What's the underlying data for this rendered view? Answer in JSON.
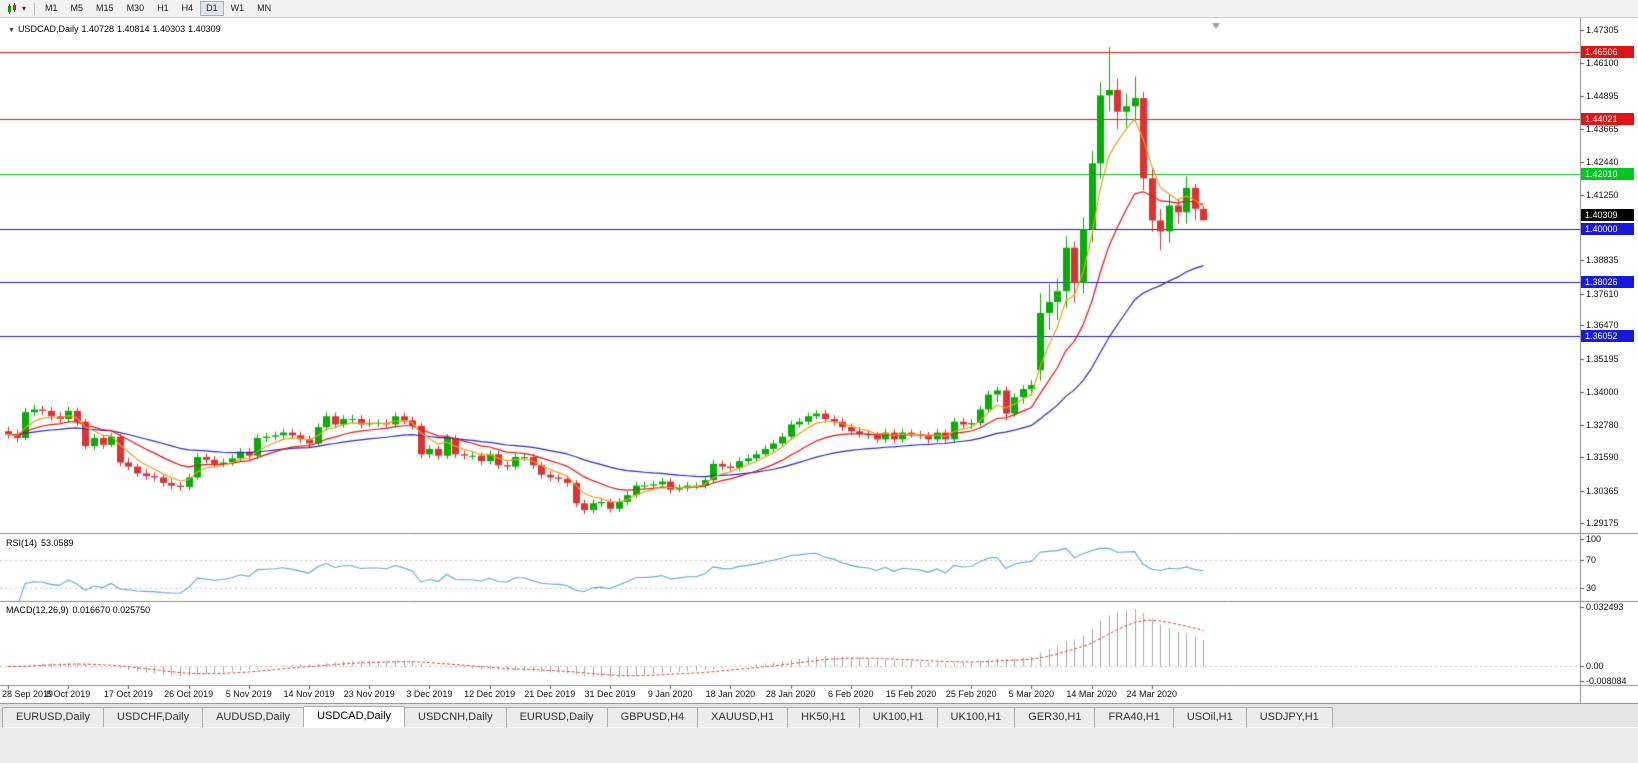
{
  "toolbar": {
    "timeframes": [
      "M1",
      "M5",
      "M15",
      "M30",
      "H1",
      "H4",
      "D1",
      "W1",
      "MN"
    ],
    "active_timeframe": "D1"
  },
  "chart": {
    "title": "USDCAD,Daily",
    "readout": {
      "open": "1.40728",
      "high": "1.40814",
      "low": "1.40303",
      "close": "1.40309"
    },
    "current_price_label": "1.40309",
    "y_axis_ticks": [
      "1.47305",
      "1.46100",
      "1.44895",
      "1.43665",
      "1.42440",
      "1.41250",
      "1.38835",
      "1.37610",
      "1.36470",
      "1.35195",
      "1.34000",
      "1.32780",
      "1.31590",
      "1.30365",
      "1.29175"
    ],
    "hlines": [
      {
        "label": "1.46506",
        "price": 1.46506,
        "color": "#e01414"
      },
      {
        "label": "1.44021",
        "price": 1.44021,
        "color": "#e01414"
      },
      {
        "label": "1.42010",
        "price": 1.4201,
        "color": "#00c81e"
      },
      {
        "label": "1.40000",
        "price": 1.4,
        "color": "#1818e0"
      },
      {
        "label": "1.38026",
        "price": 1.38026,
        "color": "#1818e0"
      },
      {
        "label": "1.36052",
        "price": 1.36052,
        "color": "#1818e0"
      }
    ]
  },
  "rsi": {
    "label": "RSI(14)",
    "value": "53.0589",
    "axis_labels": [
      "100",
      "70",
      "30"
    ],
    "levels": [
      70,
      30
    ]
  },
  "macd": {
    "label": "MACD(12,26,9)",
    "values": "0.016670 0.025750",
    "axis_labels": [
      "0.032493",
      "0.00",
      "-0.008084"
    ]
  },
  "time_axis": [
    "28 Sep 2019",
    "8 Oct 2019",
    "17 Oct 2019",
    "26 Oct 2019",
    "5 Nov 2019",
    "14 Nov 2019",
    "23 Nov 2019",
    "3 Dec 2019",
    "12 Dec 2019",
    "21 Dec 2019",
    "31 Dec 2019",
    "9 Jan 2020",
    "18 Jan 2020",
    "28 Jan 2020",
    "6 Feb 2020",
    "15 Feb 2020",
    "25 Feb 2020",
    "5 Mar 2020",
    "14 Mar 2020",
    "24 Mar 2020"
  ],
  "tabs": {
    "active_index": 3,
    "items": [
      "EURUSD,Daily",
      "USDCHF,Daily",
      "AUDUSD,Daily",
      "USDCAD,Daily",
      "USDCNH,Daily",
      "EURUSD,Daily",
      "GBPUSD,H4",
      "XAUUSD,H1",
      "HK50,H1",
      "UK100,H1",
      "UK100,H1",
      "GER30,H1",
      "FRA40,H1",
      "USOil,H1",
      "USDJPY,H1"
    ]
  },
  "colors": {
    "bull": "#00b000",
    "bear": "#e03030",
    "ma_fast": "#e8a018",
    "ma_mid": "#f01010",
    "ma_slow": "#2828cc",
    "rsi": "#58aadc",
    "macd_hist": "#a8a8a8",
    "macd_signal": "#e04040",
    "axis_line": "#8c8c8c",
    "current_badge": "#000000"
  },
  "chart_data": {
    "type": "candlestick",
    "symbol": "USDCAD",
    "timeframe": "Daily",
    "title": "USDCAD,Daily",
    "y_range": [
      1.29175,
      1.47305
    ],
    "bars_per_x_label": 7,
    "x_tick_labels": [
      "28 Sep 2019",
      "8 Oct 2019",
      "17 Oct 2019",
      "26 Oct 2019",
      "5 Nov 2019",
      "14 Nov 2019",
      "23 Nov 2019",
      "3 Dec 2019",
      "12 Dec 2019",
      "21 Dec 2019",
      "31 Dec 2019",
      "9 Jan 2020",
      "18 Jan 2020",
      "28 Jan 2020",
      "6 Feb 2020",
      "15 Feb 2020",
      "25 Feb 2020",
      "5 Mar 2020",
      "14 Mar 2020",
      "24 Mar 2020"
    ],
    "overlays": {
      "ma_type": "ema",
      "ma_fast_period": 5,
      "ma_mid_period": 13,
      "ma_slow_period": 34
    },
    "indicators": {
      "rsi_period": 14,
      "rsi_current": 53.0589,
      "rsi_levels": [
        70,
        30
      ],
      "macd_params": [
        12,
        26,
        9
      ],
      "macd_current": 0.01667,
      "macd_signal_current": 0.02575,
      "macd_axis_max": 0.032493,
      "macd_axis_min": -0.008084
    },
    "horizontal_levels": [
      1.46506,
      1.44021,
      1.4201,
      1.4,
      1.38026,
      1.36052
    ],
    "ohlc": [
      [
        1.3255,
        1.3272,
        1.3228,
        1.3243
      ],
      [
        1.3243,
        1.3262,
        1.3214,
        1.323
      ],
      [
        1.323,
        1.3341,
        1.3222,
        1.3325
      ],
      [
        1.3325,
        1.3352,
        1.331,
        1.3335
      ],
      [
        1.3335,
        1.3349,
        1.3315,
        1.333
      ],
      [
        1.333,
        1.3344,
        1.3295,
        1.331
      ],
      [
        1.331,
        1.3326,
        1.3286,
        1.33
      ],
      [
        1.33,
        1.3345,
        1.3288,
        1.333
      ],
      [
        1.333,
        1.3342,
        1.3275,
        1.329
      ],
      [
        1.329,
        1.33,
        1.3188,
        1.32
      ],
      [
        1.32,
        1.3245,
        1.3186,
        1.323
      ],
      [
        1.323,
        1.324,
        1.319,
        1.3205
      ],
      [
        1.3205,
        1.3249,
        1.3196,
        1.3235
      ],
      [
        1.3235,
        1.3244,
        1.3126,
        1.314
      ],
      [
        1.314,
        1.3158,
        1.3111,
        1.3125
      ],
      [
        1.3125,
        1.3136,
        1.3086,
        1.31
      ],
      [
        1.31,
        1.3116,
        1.3076,
        1.309
      ],
      [
        1.309,
        1.3104,
        1.3071,
        1.3085
      ],
      [
        1.3085,
        1.3096,
        1.3051,
        1.3065
      ],
      [
        1.3065,
        1.308,
        1.3041,
        1.3055
      ],
      [
        1.3055,
        1.3068,
        1.3036,
        1.305
      ],
      [
        1.305,
        1.3099,
        1.3038,
        1.3085
      ],
      [
        1.3085,
        1.3174,
        1.3077,
        1.316
      ],
      [
        1.316,
        1.3174,
        1.3136,
        1.315
      ],
      [
        1.315,
        1.3163,
        1.3121,
        1.3135
      ],
      [
        1.3135,
        1.3154,
        1.3122,
        1.314
      ],
      [
        1.314,
        1.3169,
        1.3128,
        1.3155
      ],
      [
        1.3155,
        1.3194,
        1.3143,
        1.318
      ],
      [
        1.318,
        1.3194,
        1.3151,
        1.3165
      ],
      [
        1.3165,
        1.3244,
        1.3153,
        1.323
      ],
      [
        1.323,
        1.3249,
        1.3216,
        1.3235
      ],
      [
        1.3235,
        1.3254,
        1.3221,
        1.324
      ],
      [
        1.324,
        1.3264,
        1.3226,
        1.325
      ],
      [
        1.325,
        1.3264,
        1.3226,
        1.324
      ],
      [
        1.324,
        1.3254,
        1.3211,
        1.3225
      ],
      [
        1.3225,
        1.3239,
        1.3196,
        1.321
      ],
      [
        1.321,
        1.3284,
        1.3198,
        1.327
      ],
      [
        1.327,
        1.3324,
        1.3258,
        1.331
      ],
      [
        1.331,
        1.3324,
        1.3266,
        1.328
      ],
      [
        1.328,
        1.3314,
        1.3268,
        1.33
      ],
      [
        1.33,
        1.3316,
        1.3284,
        1.33
      ],
      [
        1.33,
        1.3314,
        1.3266,
        1.328
      ],
      [
        1.328,
        1.3299,
        1.3271,
        1.3285
      ],
      [
        1.3285,
        1.3299,
        1.3271,
        1.3285
      ],
      [
        1.3285,
        1.3299,
        1.3266,
        1.328
      ],
      [
        1.328,
        1.3324,
        1.3268,
        1.331
      ],
      [
        1.331,
        1.3324,
        1.3281,
        1.3295
      ],
      [
        1.3295,
        1.3309,
        1.3261,
        1.3275
      ],
      [
        1.3275,
        1.3286,
        1.3156,
        1.317
      ],
      [
        1.317,
        1.3204,
        1.3158,
        1.319
      ],
      [
        1.319,
        1.3202,
        1.3151,
        1.3165
      ],
      [
        1.3165,
        1.3244,
        1.3153,
        1.323
      ],
      [
        1.323,
        1.3242,
        1.3156,
        1.317
      ],
      [
        1.317,
        1.3184,
        1.3151,
        1.3165
      ],
      [
        1.3165,
        1.3179,
        1.3151,
        1.3165
      ],
      [
        1.3165,
        1.3177,
        1.3131,
        1.3145
      ],
      [
        1.3145,
        1.3184,
        1.3133,
        1.317
      ],
      [
        1.317,
        1.3182,
        1.3116,
        1.313
      ],
      [
        1.313,
        1.3144,
        1.3111,
        1.3125
      ],
      [
        1.3125,
        1.3174,
        1.3113,
        1.316
      ],
      [
        1.316,
        1.3174,
        1.3146,
        1.316
      ],
      [
        1.316,
        1.3172,
        1.3116,
        1.313
      ],
      [
        1.313,
        1.3142,
        1.3081,
        1.3095
      ],
      [
        1.3095,
        1.3109,
        1.3071,
        1.3085
      ],
      [
        1.3085,
        1.3097,
        1.3066,
        1.308
      ],
      [
        1.308,
        1.3092,
        1.3051,
        1.3065
      ],
      [
        1.3065,
        1.3076,
        1.2976,
        1.299
      ],
      [
        1.299,
        1.3004,
        1.2951,
        1.2965
      ],
      [
        1.2965,
        1.3004,
        1.2953,
        1.299
      ],
      [
        1.299,
        1.3009,
        1.2976,
        1.2995
      ],
      [
        1.2995,
        1.3007,
        1.2956,
        1.297
      ],
      [
        1.297,
        1.3009,
        1.2958,
        1.2995
      ],
      [
        1.2995,
        1.3034,
        1.2983,
        1.302
      ],
      [
        1.302,
        1.3069,
        1.3008,
        1.3055
      ],
      [
        1.3055,
        1.3069,
        1.3041,
        1.3055
      ],
      [
        1.3055,
        1.3074,
        1.3046,
        1.306
      ],
      [
        1.306,
        1.3084,
        1.3048,
        1.307
      ],
      [
        1.307,
        1.3082,
        1.3026,
        1.304
      ],
      [
        1.304,
        1.3059,
        1.3031,
        1.3045
      ],
      [
        1.3045,
        1.3069,
        1.3033,
        1.3055
      ],
      [
        1.3055,
        1.3067,
        1.3041,
        1.3055
      ],
      [
        1.3055,
        1.3089,
        1.3043,
        1.3075
      ],
      [
        1.3075,
        1.3149,
        1.3063,
        1.3135
      ],
      [
        1.3135,
        1.3147,
        1.3111,
        1.3125
      ],
      [
        1.3125,
        1.3139,
        1.3106,
        1.312
      ],
      [
        1.312,
        1.3159,
        1.3108,
        1.3145
      ],
      [
        1.3145,
        1.3169,
        1.3131,
        1.3155
      ],
      [
        1.3155,
        1.3184,
        1.3143,
        1.317
      ],
      [
        1.317,
        1.3204,
        1.3158,
        1.319
      ],
      [
        1.319,
        1.3224,
        1.3178,
        1.321
      ],
      [
        1.321,
        1.3249,
        1.3198,
        1.3235
      ],
      [
        1.3235,
        1.3294,
        1.3223,
        1.328
      ],
      [
        1.328,
        1.3304,
        1.3268,
        1.329
      ],
      [
        1.329,
        1.3324,
        1.3278,
        1.331
      ],
      [
        1.331,
        1.3334,
        1.3298,
        1.332
      ],
      [
        1.332,
        1.3334,
        1.3286,
        1.33
      ],
      [
        1.33,
        1.3314,
        1.3276,
        1.329
      ],
      [
        1.329,
        1.3304,
        1.3256,
        1.327
      ],
      [
        1.327,
        1.3284,
        1.3241,
        1.3255
      ],
      [
        1.3255,
        1.3269,
        1.3231,
        1.3245
      ],
      [
        1.3245,
        1.3259,
        1.3226,
        1.324
      ],
      [
        1.324,
        1.3254,
        1.3211,
        1.3225
      ],
      [
        1.3225,
        1.3264,
        1.3213,
        1.325
      ],
      [
        1.325,
        1.3262,
        1.3211,
        1.3225
      ],
      [
        1.3225,
        1.3264,
        1.3213,
        1.325
      ],
      [
        1.325,
        1.3262,
        1.3231,
        1.3245
      ],
      [
        1.3245,
        1.3257,
        1.3226,
        1.324
      ],
      [
        1.324,
        1.3252,
        1.3211,
        1.3225
      ],
      [
        1.3225,
        1.3264,
        1.3213,
        1.325
      ],
      [
        1.325,
        1.3262,
        1.3211,
        1.3225
      ],
      [
        1.3225,
        1.3304,
        1.3213,
        1.329
      ],
      [
        1.329,
        1.3304,
        1.3266,
        1.328
      ],
      [
        1.328,
        1.3299,
        1.3263,
        1.3285
      ],
      [
        1.3285,
        1.3349,
        1.3273,
        1.3335
      ],
      [
        1.3335,
        1.3404,
        1.3323,
        1.339
      ],
      [
        1.339,
        1.3419,
        1.3361,
        1.3405
      ],
      [
        1.3405,
        1.3419,
        1.3296,
        1.332
      ],
      [
        1.332,
        1.3394,
        1.3308,
        1.338
      ],
      [
        1.338,
        1.3424,
        1.3356,
        1.341
      ],
      [
        1.341,
        1.3444,
        1.3386,
        1.3425
      ],
      [
        1.348,
        1.3762,
        1.3442,
        1.369
      ],
      [
        1.369,
        1.3796,
        1.3628,
        1.373
      ],
      [
        1.373,
        1.3816,
        1.3664,
        1.377
      ],
      [
        1.377,
        1.3972,
        1.3708,
        1.393
      ],
      [
        1.393,
        1.3952,
        1.3728,
        1.38
      ],
      [
        1.38,
        1.4042,
        1.3762,
        1.3998
      ],
      [
        1.3998,
        1.4286,
        1.3952,
        1.424
      ],
      [
        1.424,
        1.4538,
        1.4182,
        1.449
      ],
      [
        1.449,
        1.4668,
        1.4432,
        1.451
      ],
      [
        1.451,
        1.4552,
        1.4366,
        1.443
      ],
      [
        1.443,
        1.4496,
        1.4372,
        1.445
      ],
      [
        1.445,
        1.456,
        1.4392,
        1.448
      ],
      [
        1.448,
        1.4502,
        1.4142,
        1.4185
      ],
      [
        1.4185,
        1.4227,
        1.3988,
        1.403
      ],
      [
        1.403,
        1.4072,
        1.392,
        1.399
      ],
      [
        1.399,
        1.4127,
        1.3948,
        1.4085
      ],
      [
        1.4085,
        1.4111,
        1.4018,
        1.406
      ],
      [
        1.406,
        1.4192,
        1.4018,
        1.415
      ],
      [
        1.415,
        1.4164,
        1.4031,
        1.4073
      ],
      [
        1.40728,
        1.40814,
        1.40303,
        1.40309
      ]
    ]
  }
}
